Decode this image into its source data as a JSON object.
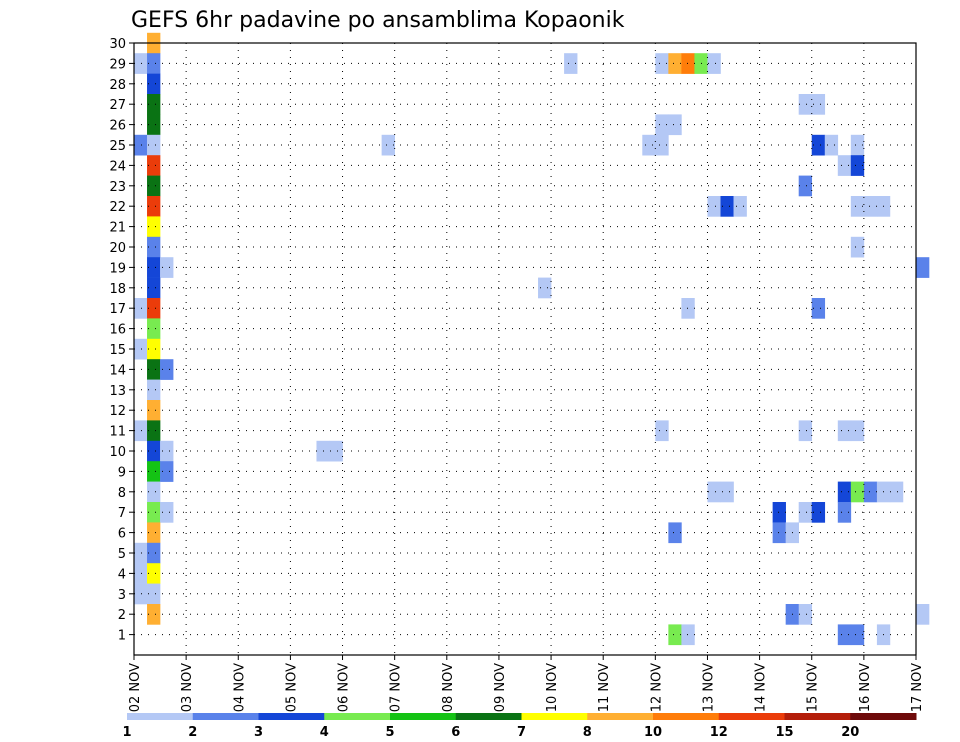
{
  "chart_data": {
    "type": "heatmap",
    "title": "GEFS 6hr padavine po ansamblima Kopaonik",
    "xlabel": "",
    "ylabel": "",
    "x_tick_labels": [
      "02 NOV",
      "03 NOV",
      "04 NOV",
      "05 NOV",
      "06 NOV",
      "07 NOV",
      "08 NOV",
      "09 NOV",
      "10 NOV",
      "11 NOV",
      "12 NOV",
      "13 NOV",
      "14 NOV",
      "15 NOV",
      "16 NOV",
      "17 NOV"
    ],
    "y_tick_labels": [
      "1",
      "2",
      "3",
      "4",
      "5",
      "6",
      "7",
      "8",
      "9",
      "10",
      "11",
      "12",
      "13",
      "14",
      "15",
      "16",
      "17",
      "18",
      "19",
      "20",
      "21",
      "22",
      "23",
      "24",
      "25",
      "26",
      "27",
      "28",
      "29",
      "30"
    ],
    "x_range_days": [
      0,
      15
    ],
    "y_range": [
      0,
      30
    ],
    "grid": true,
    "colorbar": {
      "levels": [
        "1",
        "2",
        "3",
        "4",
        "5",
        "6",
        "7",
        "8",
        "10",
        "12",
        "15",
        "20"
      ],
      "colors": [
        "#b4c8f5",
        "#5a82ea",
        "#1446d7",
        "#78eb50",
        "#14c314",
        "#0a7314",
        "#ffff00",
        "#ffaf32",
        "#ff7d0a",
        "#eb3c0a",
        "#b41e0a",
        "#6e0a0a"
      ]
    },
    "cell_width_days": 0.25,
    "cells": [
      [
        0.25,
        30,
        7
      ],
      [
        0,
        29,
        0
      ],
      [
        0.25,
        29,
        1
      ],
      [
        8.25,
        29,
        0
      ],
      [
        10,
        29,
        0
      ],
      [
        10.25,
        29,
        7
      ],
      [
        10.5,
        29,
        8
      ],
      [
        10.75,
        29,
        3
      ],
      [
        11,
        29,
        0
      ],
      [
        0.25,
        28,
        2
      ],
      [
        0.25,
        27,
        5
      ],
      [
        12.75,
        27,
        0
      ],
      [
        13,
        27,
        0
      ],
      [
        0.25,
        26,
        5
      ],
      [
        10,
        26,
        0
      ],
      [
        10.25,
        26,
        0
      ],
      [
        0,
        25,
        1
      ],
      [
        0.25,
        25,
        0
      ],
      [
        4.75,
        25,
        0
      ],
      [
        9.75,
        25,
        0
      ],
      [
        10,
        25,
        0
      ],
      [
        13,
        25,
        2
      ],
      [
        13.25,
        25,
        0
      ],
      [
        13.75,
        25,
        0
      ],
      [
        0.25,
        24,
        9
      ],
      [
        13.5,
        24,
        0
      ],
      [
        13.75,
        24,
        2
      ],
      [
        0.25,
        23,
        5
      ],
      [
        12.75,
        23,
        1
      ],
      [
        0.25,
        22,
        9
      ],
      [
        11,
        22,
        0
      ],
      [
        11.25,
        22,
        2
      ],
      [
        11.5,
        22,
        0
      ],
      [
        13.75,
        22,
        0
      ],
      [
        14,
        22,
        0
      ],
      [
        14.25,
        22,
        0
      ],
      [
        0.25,
        21,
        6
      ],
      [
        0.25,
        20,
        1
      ],
      [
        13.75,
        20,
        0
      ],
      [
        0.25,
        19,
        2
      ],
      [
        0.5,
        19,
        0
      ],
      [
        15,
        19,
        1
      ],
      [
        0.25,
        18,
        2
      ],
      [
        7.75,
        18,
        0
      ],
      [
        0,
        17,
        0
      ],
      [
        0.25,
        17,
        9
      ],
      [
        10.5,
        17,
        0
      ],
      [
        13,
        17,
        1
      ],
      [
        0.25,
        16,
        3
      ],
      [
        0,
        15,
        0
      ],
      [
        0.25,
        15,
        6
      ],
      [
        0.25,
        14,
        5
      ],
      [
        0.5,
        14,
        1
      ],
      [
        0.25,
        13,
        0
      ],
      [
        0.25,
        12,
        7
      ],
      [
        0,
        11,
        0
      ],
      [
        0.25,
        11,
        5
      ],
      [
        10,
        11,
        0
      ],
      [
        12.75,
        11,
        0
      ],
      [
        13.5,
        11,
        0
      ],
      [
        13.75,
        11,
        0
      ],
      [
        0.25,
        10,
        2
      ],
      [
        0.5,
        10,
        0
      ],
      [
        3.5,
        10,
        0
      ],
      [
        3.75,
        10,
        0
      ],
      [
        0.25,
        9,
        4
      ],
      [
        0.5,
        9,
        1
      ],
      [
        0.25,
        8,
        0
      ],
      [
        11,
        8,
        0
      ],
      [
        11.25,
        8,
        0
      ],
      [
        13.5,
        8,
        2
      ],
      [
        13.75,
        8,
        3
      ],
      [
        14,
        8,
        1
      ],
      [
        14.25,
        8,
        0
      ],
      [
        14.5,
        8,
        0
      ],
      [
        0.25,
        7,
        3
      ],
      [
        0.5,
        7,
        0
      ],
      [
        12.25,
        7,
        2
      ],
      [
        12.75,
        7,
        0
      ],
      [
        13,
        7,
        2
      ],
      [
        13.5,
        7,
        1
      ],
      [
        0.25,
        6,
        7
      ],
      [
        10.25,
        6,
        1
      ],
      [
        12.25,
        6,
        1
      ],
      [
        12.5,
        6,
        0
      ],
      [
        0,
        5,
        0
      ],
      [
        0.25,
        5,
        1
      ],
      [
        0,
        4,
        0
      ],
      [
        0.25,
        4,
        6
      ],
      [
        0,
        3,
        0
      ],
      [
        0.25,
        3,
        0
      ],
      [
        0.25,
        2,
        7
      ],
      [
        12.5,
        2,
        1
      ],
      [
        12.75,
        2,
        0
      ],
      [
        15,
        2,
        0
      ],
      [
        10.25,
        1,
        3
      ],
      [
        10.5,
        1,
        0
      ],
      [
        13.5,
        1,
        1
      ],
      [
        13.75,
        1,
        1
      ],
      [
        14.25,
        1,
        0
      ]
    ]
  }
}
